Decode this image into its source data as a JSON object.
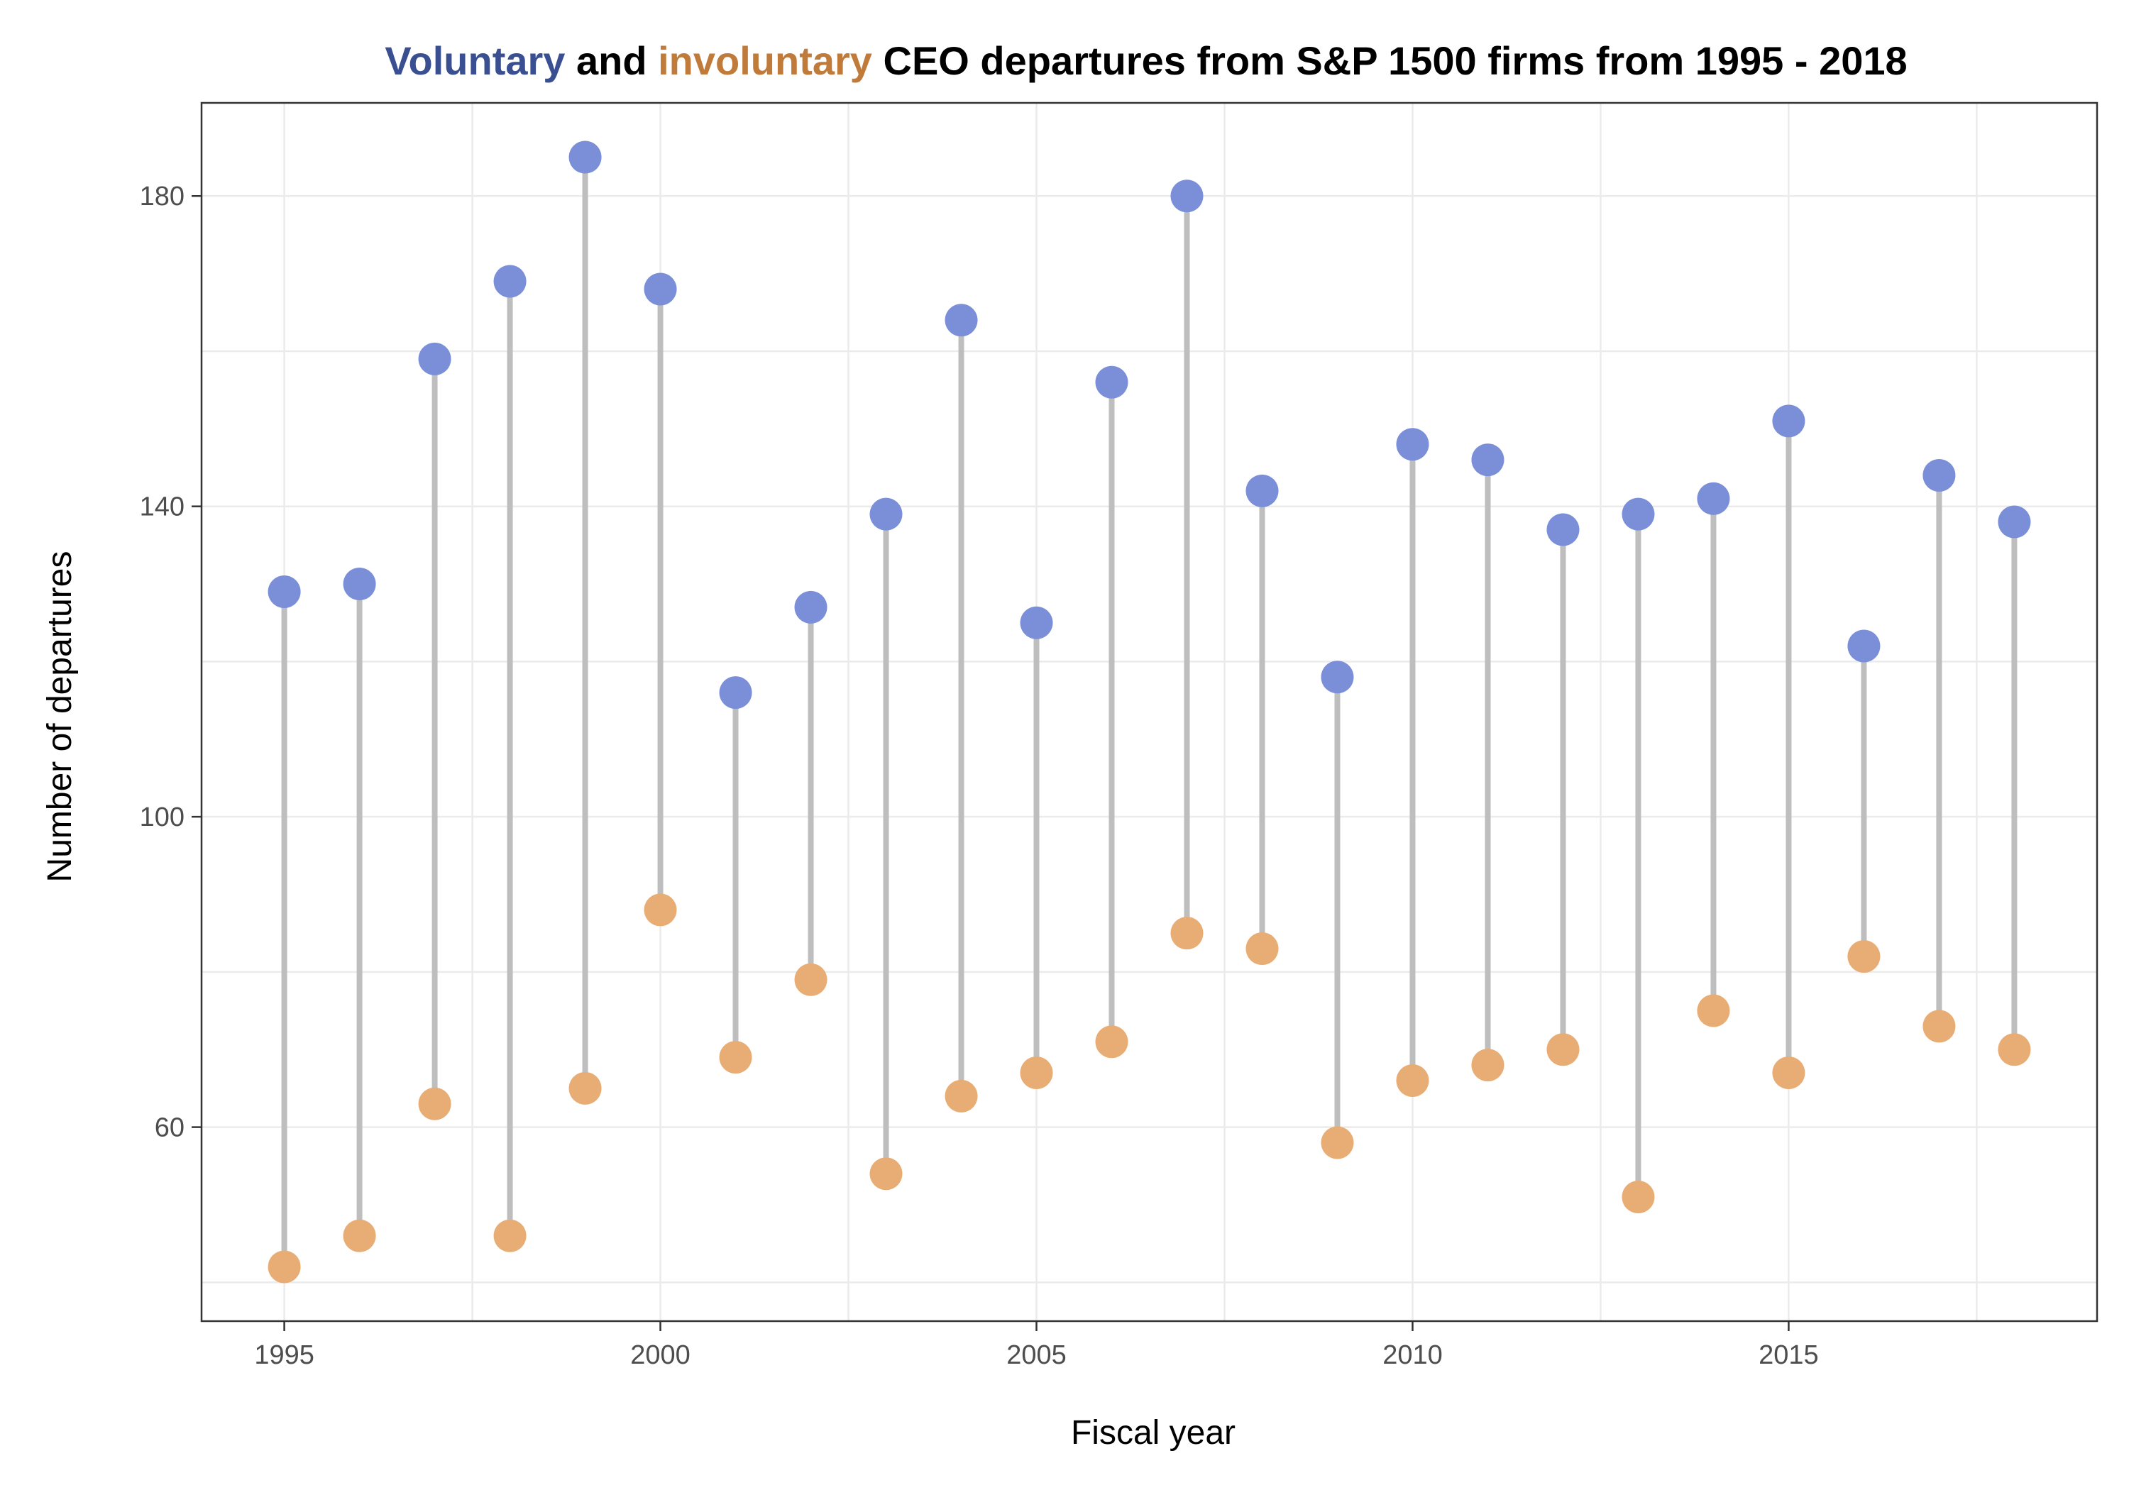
{
  "chart_data": {
    "type": "scatter",
    "title_parts": [
      {
        "text": "Voluntary",
        "color": "#3a4f91"
      },
      {
        "text": " and ",
        "color": "#000000"
      },
      {
        "text": "involuntary",
        "color": "#c07a3a"
      },
      {
        "text": " CEO departures from S&P 1500 firms from 1995 - 2018",
        "color": "#000000"
      }
    ],
    "xlabel": "Fiscal year",
    "ylabel": "Number of departures",
    "xlim": [
      1993.9,
      2019.1
    ],
    "ylim": [
      35,
      192
    ],
    "xticks": [
      1995,
      2000,
      2005,
      2010,
      2015
    ],
    "yticks": [
      60,
      100,
      140,
      180
    ],
    "grid": true,
    "x": [
      1995,
      1996,
      1997,
      1998,
      1999,
      2000,
      2001,
      2002,
      2003,
      2004,
      2005,
      2006,
      2007,
      2008,
      2009,
      2010,
      2011,
      2012,
      2013,
      2014,
      2015,
      2016,
      2017,
      2018
    ],
    "series": [
      {
        "color": "#7b8fd8",
        "values": [
          129,
          130,
          159,
          169,
          185,
          168,
          116,
          127,
          139,
          164,
          125,
          156,
          180,
          142,
          118,
          148,
          146,
          137,
          139,
          141,
          151,
          122,
          144,
          138
        ]
      },
      {
        "color": "#e8ad75",
        "values": [
          42,
          46,
          63,
          46,
          65,
          88,
          69,
          79,
          54,
          64,
          67,
          71,
          85,
          83,
          58,
          66,
          68,
          70,
          51,
          75,
          67,
          82,
          73,
          70
        ]
      }
    ],
    "segment_color": "#bebebe"
  }
}
